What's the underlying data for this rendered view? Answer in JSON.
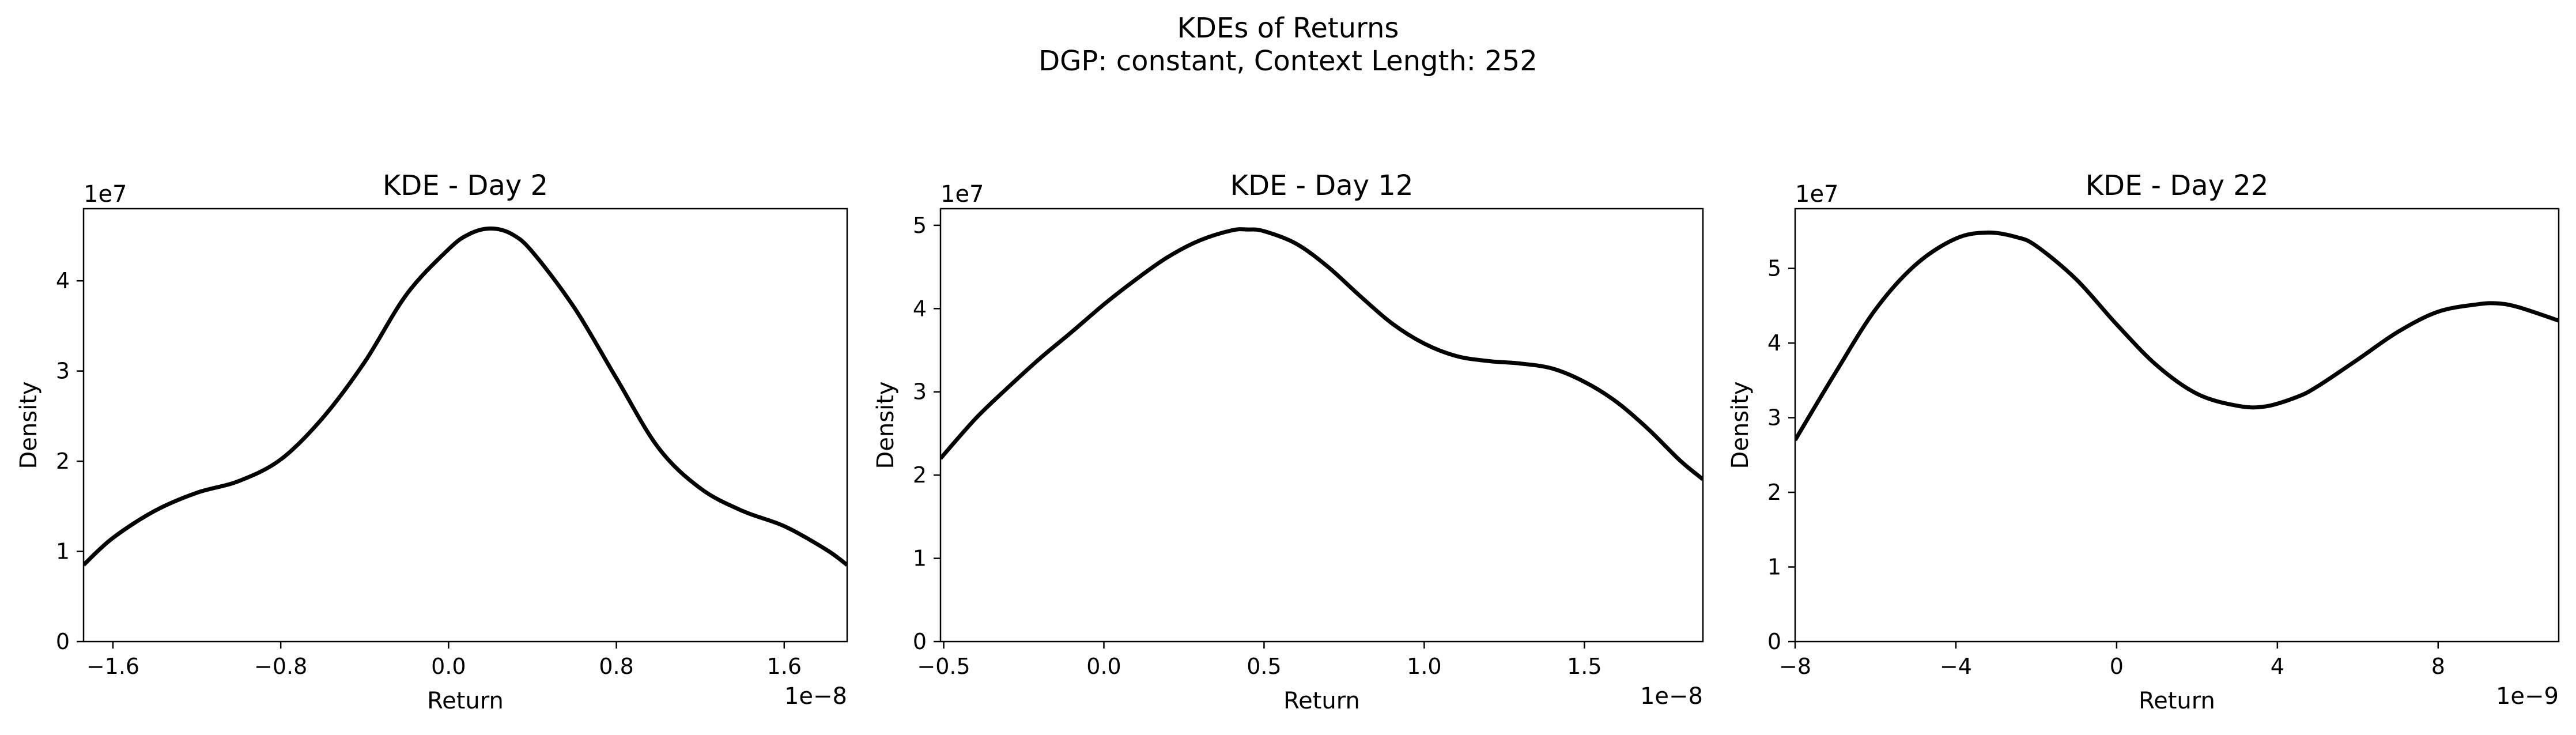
{
  "figure": {
    "title_line1": "KDEs of Returns",
    "title_line2": "DGP: constant, Context Length: 252",
    "line_color": "#000000"
  },
  "chart_data": [
    {
      "type": "line",
      "title": "KDE - Day 2",
      "xlabel": "Return",
      "ylabel": "Density",
      "x_offset_label": "1e−8",
      "y_offset_label": "1e7",
      "xlim": [
        -1.74,
        1.9
      ],
      "ylim": [
        0,
        4.8
      ],
      "xticks": [
        -1.6,
        -0.8,
        0.0,
        0.8,
        1.6
      ],
      "xtick_labels": [
        "−1.6",
        "−0.8",
        "0.0",
        "0.8",
        "1.6"
      ],
      "yticks": [
        0,
        1,
        2,
        3,
        4
      ],
      "ytick_labels": [
        "0",
        "1",
        "2",
        "3",
        "4"
      ],
      "grid": false,
      "x": [
        -1.74,
        -1.6,
        -1.4,
        -1.2,
        -1.0,
        -0.8,
        -0.6,
        -0.4,
        -0.2,
        0.0,
        0.1,
        0.2,
        0.3,
        0.4,
        0.6,
        0.8,
        1.0,
        1.2,
        1.4,
        1.6,
        1.8,
        1.9
      ],
      "y": [
        0.85,
        1.15,
        1.45,
        1.65,
        1.78,
        2.02,
        2.48,
        3.1,
        3.85,
        4.35,
        4.52,
        4.58,
        4.52,
        4.32,
        3.7,
        2.92,
        2.15,
        1.7,
        1.45,
        1.28,
        1.02,
        0.85
      ]
    },
    {
      "type": "line",
      "title": "KDE - Day 12",
      "xlabel": "Return",
      "ylabel": "Density",
      "x_offset_label": "1e−8",
      "y_offset_label": "1e7",
      "xlim": [
        -0.51,
        1.87
      ],
      "ylim": [
        0,
        5.2
      ],
      "xticks": [
        -0.5,
        0.0,
        0.5,
        1.0,
        1.5
      ],
      "xtick_labels": [
        "−0.5",
        "0.0",
        "0.5",
        "1.0",
        "1.5"
      ],
      "yticks": [
        0,
        1,
        2,
        3,
        4,
        5
      ],
      "ytick_labels": [
        "0",
        "1",
        "2",
        "3",
        "4",
        "5"
      ],
      "grid": false,
      "x": [
        -0.51,
        -0.4,
        -0.3,
        -0.2,
        -0.1,
        0.0,
        0.1,
        0.2,
        0.3,
        0.4,
        0.45,
        0.5,
        0.6,
        0.7,
        0.8,
        0.9,
        1.0,
        1.1,
        1.2,
        1.3,
        1.4,
        1.5,
        1.6,
        1.7,
        1.8,
        1.87
      ],
      "y": [
        2.2,
        2.68,
        3.05,
        3.4,
        3.72,
        4.05,
        4.35,
        4.62,
        4.82,
        4.94,
        4.95,
        4.93,
        4.78,
        4.5,
        4.15,
        3.82,
        3.58,
        3.43,
        3.37,
        3.34,
        3.28,
        3.12,
        2.88,
        2.55,
        2.17,
        1.95
      ]
    },
    {
      "type": "line",
      "title": "KDE - Day 22",
      "xlabel": "Return",
      "ylabel": "Density",
      "x_offset_label": "1e−9",
      "y_offset_label": "1e7",
      "xlim": [
        -8.0,
        11.0
      ],
      "ylim": [
        0,
        5.8
      ],
      "xticks": [
        -8,
        -4,
        0,
        4,
        8
      ],
      "xtick_labels": [
        "−8",
        "−4",
        "0",
        "4",
        "8"
      ],
      "yticks": [
        0,
        1,
        2,
        3,
        4,
        5
      ],
      "ytick_labels": [
        "0",
        "1",
        "2",
        "3",
        "4",
        "5"
      ],
      "grid": false,
      "x": [
        -8.0,
        -7.0,
        -6.0,
        -5.0,
        -4.0,
        -3.2,
        -2.5,
        -2.0,
        -1.0,
        0.0,
        1.0,
        2.0,
        3.0,
        3.7,
        4.5,
        5.0,
        6.0,
        7.0,
        8.0,
        9.0,
        9.5,
        10.0,
        11.0
      ],
      "y": [
        2.7,
        3.6,
        4.45,
        5.05,
        5.4,
        5.48,
        5.42,
        5.3,
        4.85,
        4.25,
        3.7,
        3.32,
        3.16,
        3.15,
        3.28,
        3.42,
        3.78,
        4.15,
        4.42,
        4.52,
        4.53,
        4.48,
        4.3
      ]
    }
  ]
}
